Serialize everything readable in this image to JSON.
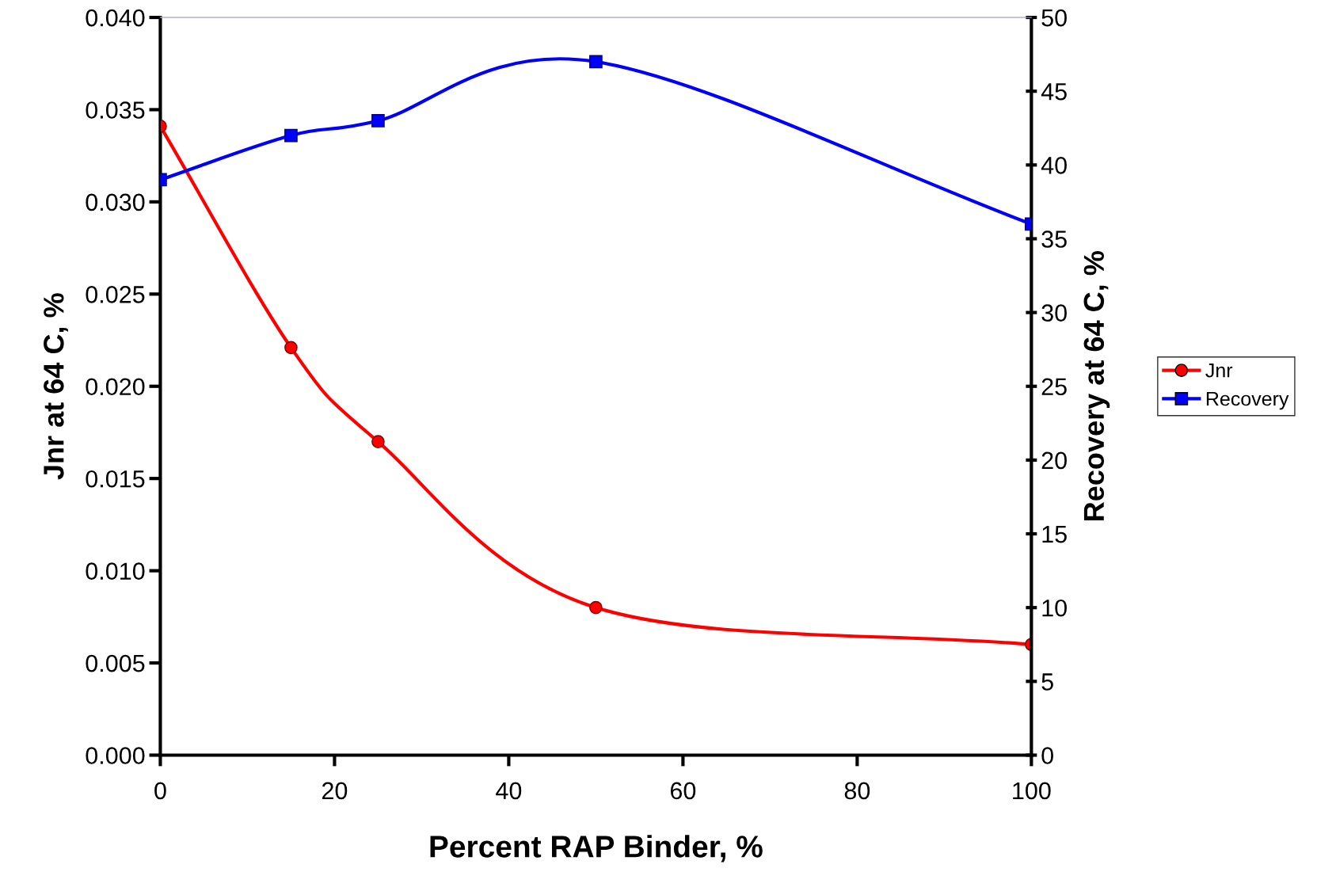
{
  "chart_data": {
    "type": "line",
    "xlabel": "Percent RAP Binder, %",
    "ylabel": "Jnr at 64 C, %",
    "y2label": "Recovery at 64 C, %",
    "x": [
      0,
      15,
      25,
      50,
      100
    ],
    "series": [
      {
        "name": "Jnr",
        "color": "#ff0000",
        "values": [
          0.0341,
          0.0221,
          0.017,
          0.008,
          0.006
        ],
        "marker": "circle"
      },
      {
        "name": "Recovery",
        "color": "#0000ff",
        "values": [
          39,
          42,
          43,
          47,
          36
        ],
        "axis": "y2",
        "marker": "square"
      }
    ],
    "xlim": [
      0,
      100
    ],
    "xticks": [
      0,
      20,
      40,
      60,
      80,
      100
    ],
    "ylim": [
      0,
      0.04
    ],
    "yticks": [
      {
        "value": 0,
        "label": "0.000"
      },
      {
        "value": 0.005,
        "label": "0.005"
      },
      {
        "value": 0.01,
        "label": "0.010"
      },
      {
        "value": 0.015,
        "label": "0.015"
      },
      {
        "value": 0.02,
        "label": "0.020"
      },
      {
        "value": 0.025,
        "label": "0.025"
      },
      {
        "value": 0.03,
        "label": "0.030"
      },
      {
        "value": 0.035,
        "label": "0.035"
      },
      {
        "value": 0.04,
        "label": "0.040"
      }
    ],
    "y2lim": [
      0,
      50
    ],
    "y2ticks": [
      0,
      5,
      10,
      15,
      20,
      25,
      30,
      35,
      40,
      45,
      50
    ],
    "legend": "right",
    "grid": false,
    "line_style": "solid"
  }
}
